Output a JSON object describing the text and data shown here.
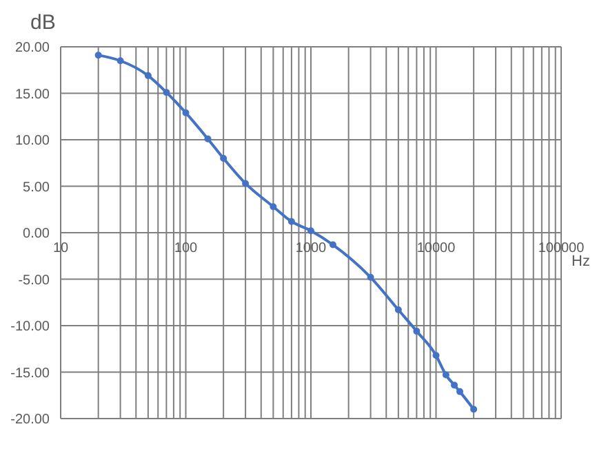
{
  "chart_data": {
    "type": "line",
    "xlabel": "Hz",
    "ylabel": "dB",
    "log": "x",
    "grid": true,
    "marker": "circle",
    "line_style": "solid",
    "x": [
      20,
      30,
      50,
      70,
      100,
      150,
      200,
      300,
      500,
      700,
      1000,
      1500,
      3000,
      5000,
      7000,
      10000,
      12000,
      14000,
      15500,
      20000
    ],
    "series": [
      {
        "color": "#4472c4",
        "values": [
          19.1,
          18.5,
          16.9,
          15.1,
          12.9,
          10.1,
          8.0,
          5.3,
          2.8,
          1.2,
          0.2,
          -1.3,
          -4.8,
          -8.3,
          -10.6,
          -13.2,
          -15.3,
          -16.4,
          -17.1,
          -19.0
        ]
      }
    ],
    "xlim": [
      10,
      100000
    ],
    "ylim": [
      -20,
      20
    ],
    "xticks": [
      {
        "value": 10,
        "label": "10"
      },
      {
        "value": 20,
        "label": null
      },
      {
        "value": 30,
        "label": null
      },
      {
        "value": 40,
        "label": null
      },
      {
        "value": 50,
        "label": null
      },
      {
        "value": 60,
        "label": null
      },
      {
        "value": 70,
        "label": null
      },
      {
        "value": 80,
        "label": null
      },
      {
        "value": 90,
        "label": null
      },
      {
        "value": 100,
        "label": "100"
      },
      {
        "value": 200,
        "label": null
      },
      {
        "value": 300,
        "label": null
      },
      {
        "value": 400,
        "label": null
      },
      {
        "value": 500,
        "label": null
      },
      {
        "value": 600,
        "label": null
      },
      {
        "value": 700,
        "label": null
      },
      {
        "value": 800,
        "label": null
      },
      {
        "value": 900,
        "label": null
      },
      {
        "value": 1000,
        "label": "1000"
      },
      {
        "value": 2000,
        "label": null
      },
      {
        "value": 3000,
        "label": null
      },
      {
        "value": 4000,
        "label": null
      },
      {
        "value": 5000,
        "label": null
      },
      {
        "value": 6000,
        "label": null
      },
      {
        "value": 7000,
        "label": null
      },
      {
        "value": 8000,
        "label": null
      },
      {
        "value": 9000,
        "label": null
      },
      {
        "value": 10000,
        "label": "10000"
      },
      {
        "value": 20000,
        "label": null
      },
      {
        "value": 30000,
        "label": null
      },
      {
        "value": 40000,
        "label": null
      },
      {
        "value": 50000,
        "label": null
      },
      {
        "value": 60000,
        "label": null
      },
      {
        "value": 70000,
        "label": null
      },
      {
        "value": 80000,
        "label": null
      },
      {
        "value": 90000,
        "label": null
      },
      {
        "value": 100000,
        "label": "100000"
      }
    ],
    "yticks": [
      {
        "value": 20,
        "label": "20.00"
      },
      {
        "value": 15,
        "label": "15.00"
      },
      {
        "value": 10,
        "label": "10.00"
      },
      {
        "value": 5,
        "label": "5.00"
      },
      {
        "value": 0,
        "label": "0.00"
      },
      {
        "value": -5,
        "label": "-5.00"
      },
      {
        "value": -10,
        "label": "-10.00"
      },
      {
        "value": -15,
        "label": "-15.00"
      },
      {
        "value": -20,
        "label": "-20.00"
      }
    ]
  }
}
